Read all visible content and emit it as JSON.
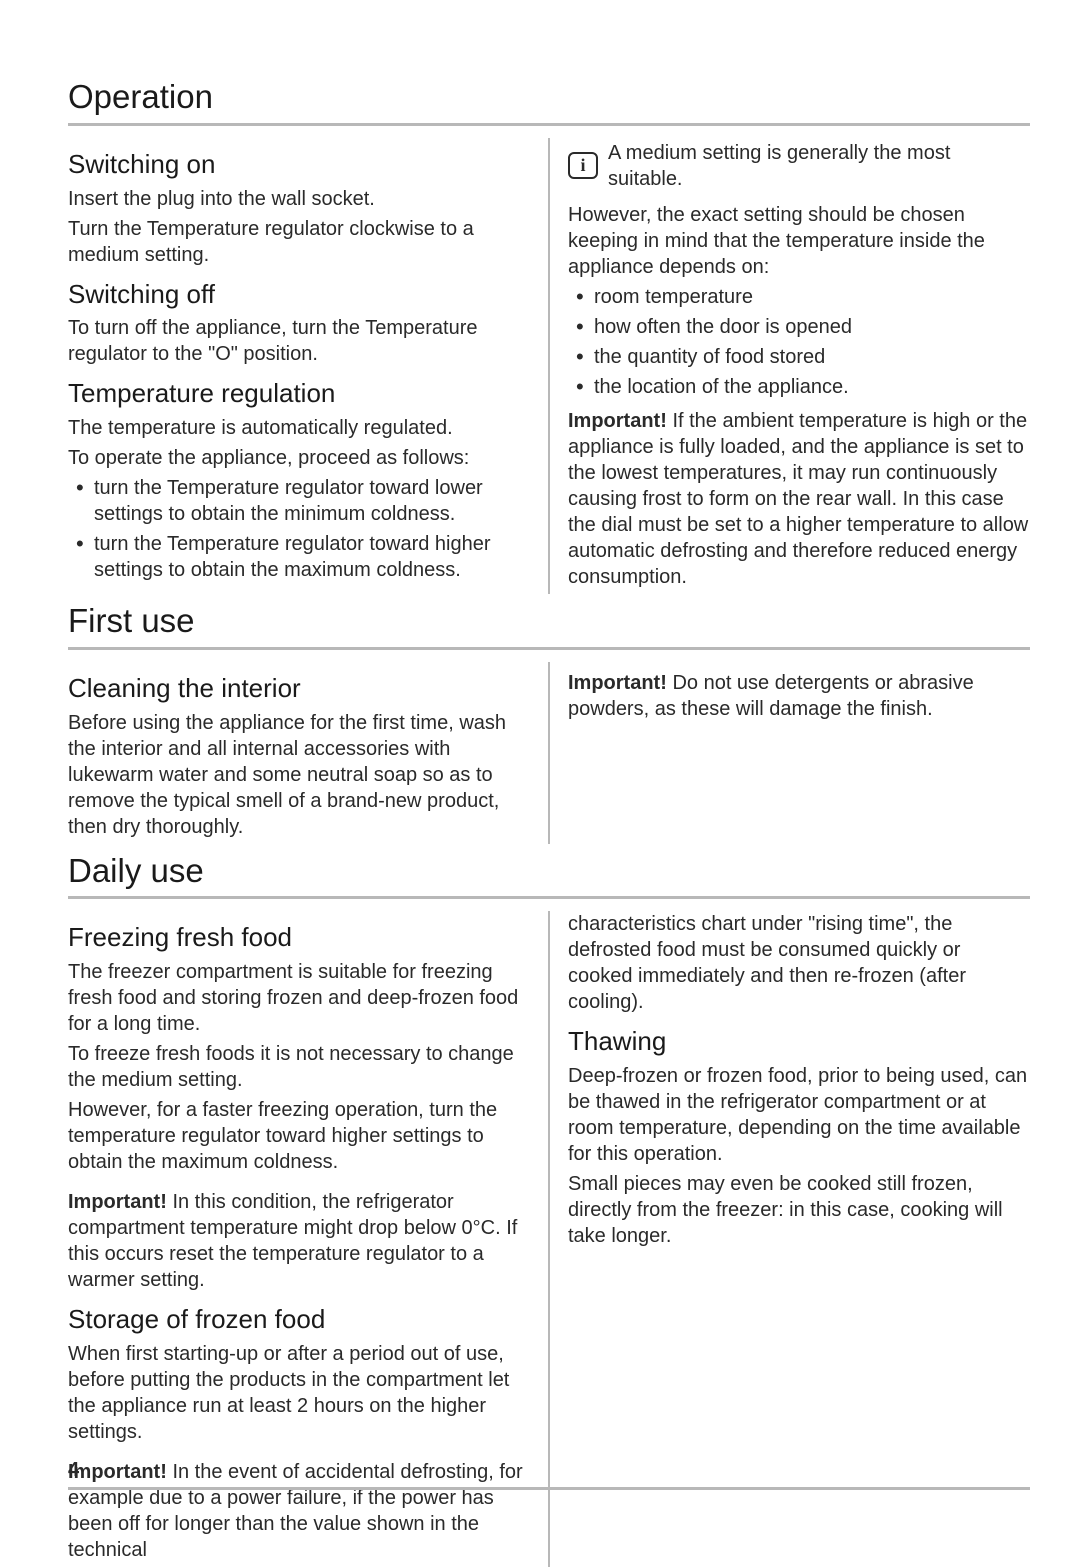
{
  "page_number": "4",
  "sections": {
    "operation": {
      "title": "Operation",
      "left": {
        "switching_on": {
          "heading": "Switching on",
          "p1": "Insert the plug into the wall socket.",
          "p2": "Turn the Temperature regulator clockwise to a medium setting."
        },
        "switching_off": {
          "heading": "Switching off",
          "p1": "To turn off the appliance, turn the Temperature regulator to the \"O\" position."
        },
        "temp_reg": {
          "heading": "Temperature regulation",
          "p1": "The temperature is automatically regulated.",
          "p2": "To operate the appliance, proceed as follows:",
          "bullets": [
            "turn the Temperature regulator toward lower settings to obtain the minimum coldness.",
            "turn the Temperature regulator toward higher settings to obtain the maximum coldness."
          ]
        }
      },
      "right": {
        "info_text": "A medium setting is generally the most suitable.",
        "p1": "However, the exact setting should be chosen keeping in mind that the temperature inside the appliance depends on:",
        "bullets": [
          "room temperature",
          "how often the door is opened",
          "the quantity of food stored",
          "the location of the appliance."
        ],
        "important_label": "Important!",
        "important_text": "  If the ambient temperature is high or the appliance is fully loaded, and the appliance is set to the lowest temperatures, it may run continuously causing frost to form on the rear wall. In this case the dial must be set to a higher temperature to allow automatic defrosting and therefore reduced energy consumption."
      }
    },
    "first_use": {
      "title": "First use",
      "left": {
        "cleaning": {
          "heading": "Cleaning the interior",
          "p1": "Before using the appliance for the first time, wash the interior and all internal accessories with lukewarm water and some neutral soap so as to remove the typical smell of a brand-new product, then dry thoroughly."
        }
      },
      "right": {
        "important_label": "Important!",
        "important_text": "  Do not use detergents or abrasive powders, as these will damage the finish."
      }
    },
    "daily_use": {
      "title": "Daily use",
      "left": {
        "freezing": {
          "heading": "Freezing fresh food",
          "p1": "The freezer compartment is suitable for freezing fresh food and storing frozen and deep-frozen food for a long time.",
          "p2": "To freeze fresh foods it is not necessary to change the medium setting.",
          "p3": "However, for a faster freezing operation, turn the temperature regulator toward higher settings to obtain the maximum coldness.",
          "important_label": "Important!",
          "important_text": "  In this condition, the refrigerator compartment temperature might drop below 0°C. If this occurs reset the temperature regulator to a warmer setting."
        },
        "storage": {
          "heading": "Storage of frozen food",
          "p1": "When first starting-up or after a period out of use, before putting the products in the compartment let the appliance run at least 2 hours on the higher settings.",
          "important_label": "Important!",
          "important_text": "  In the event of accidental defrosting, for example due to a power failure, if the power has been off for longer than the value shown in the technical"
        }
      },
      "right": {
        "continuation": "characteristics chart under \"rising time\", the defrosted food must be consumed quickly or cooked immediately and then re-frozen (after cooling).",
        "thawing": {
          "heading": "Thawing",
          "p1": "Deep-frozen or frozen food, prior to being used, can be thawed in the refrigerator compartment or at room temperature, depending on the time available for this operation.",
          "p2": "Small pieces may even be cooked still frozen, directly from the freezer: in this case, cooking will take longer."
        }
      }
    }
  }
}
